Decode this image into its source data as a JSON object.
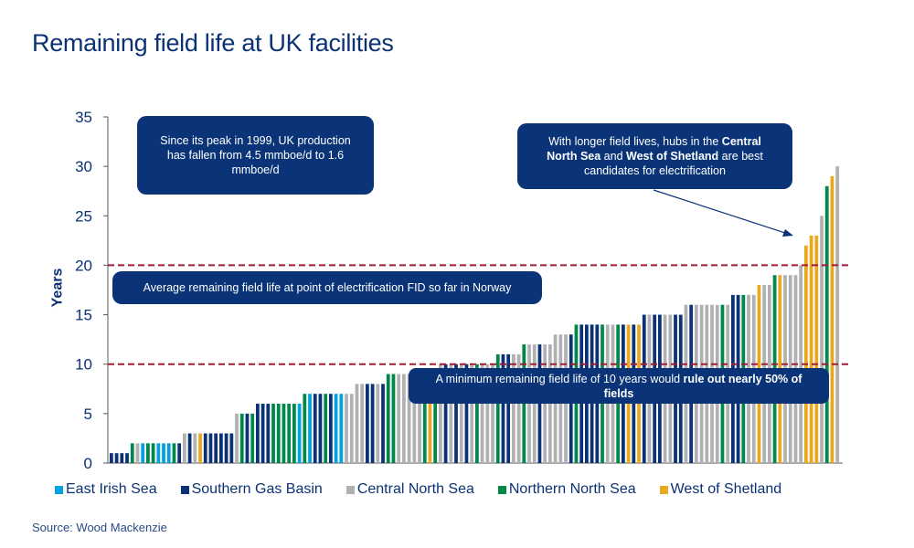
{
  "title": "Remaining field life at UK facilities",
  "source": "Source: Wood Mackenzie",
  "annotations": {
    "production": "Since its peak in 1999, UK production has fallen from 4.5 mmboe/d  to 1.6 mmboe/d",
    "norway_avg": "Average remaining field life at point of electrification FID so far in Norway",
    "minimum_pre": "A minimum  remaining field life of 10 years would ",
    "minimum_bold": "rule out nearly 50% of fields",
    "hubs_1": "With longer field lives, hubs in the ",
    "hubs_b1": "Central North Sea",
    "hubs_2": " and ",
    "hubs_b2": "West of Shetland",
    "hubs_3": " are best candidates  for electrification"
  },
  "colors": {
    "East Irish Sea": "#00a3e0",
    "Southern Gas Basin": "#0b3275",
    "Central North Sea": "#b1b1b4",
    "Northern North Sea": "#00884a",
    "West of Shetland": "#eaa81c",
    "reference_line": "#a01c36"
  },
  "chart_data": {
    "type": "bar",
    "xlabel": "",
    "ylabel": "Years",
    "ylim": [
      0,
      35
    ],
    "yticks": [
      0,
      5,
      10,
      15,
      20,
      25,
      30,
      35
    ],
    "grid": false,
    "legend_position": "bottom",
    "legend": [
      "East Irish Sea",
      "Southern Gas Basin",
      "Central North Sea",
      "Northern North Sea",
      "West of Shetland"
    ],
    "reference_lines": [
      20,
      10
    ],
    "codes": {
      "E": "East Irish Sea",
      "S": "Southern Gas Basin",
      "C": "Central North Sea",
      "N": "Northern North Sea",
      "W": "West of Shetland"
    },
    "bars": [
      [
        "S",
        1
      ],
      [
        "S",
        1
      ],
      [
        "S",
        1
      ],
      [
        "S",
        1
      ],
      [
        "N",
        2
      ],
      [
        "C",
        2
      ],
      [
        "E",
        2
      ],
      [
        "N",
        2
      ],
      [
        "N",
        2
      ],
      [
        "E",
        2
      ],
      [
        "E",
        2
      ],
      [
        "E",
        2
      ],
      [
        "N",
        2
      ],
      [
        "S",
        2
      ],
      [
        "C",
        3
      ],
      [
        "S",
        3
      ],
      [
        "C",
        3
      ],
      [
        "W",
        3
      ],
      [
        "S",
        3
      ],
      [
        "S",
        3
      ],
      [
        "S",
        3
      ],
      [
        "S",
        3
      ],
      [
        "S",
        3
      ],
      [
        "S",
        3
      ],
      [
        "C",
        5
      ],
      [
        "N",
        5
      ],
      [
        "S",
        5
      ],
      [
        "N",
        5
      ],
      [
        "S",
        6
      ],
      [
        "S",
        6
      ],
      [
        "S",
        6
      ],
      [
        "N",
        6
      ],
      [
        "N",
        6
      ],
      [
        "N",
        6
      ],
      [
        "N",
        6
      ],
      [
        "N",
        6
      ],
      [
        "E",
        6
      ],
      [
        "N",
        7
      ],
      [
        "E",
        7
      ],
      [
        "S",
        7
      ],
      [
        "S",
        7
      ],
      [
        "N",
        7
      ],
      [
        "S",
        7
      ],
      [
        "E",
        7
      ],
      [
        "E",
        7
      ],
      [
        "C",
        7
      ],
      [
        "C",
        7
      ],
      [
        "C",
        8
      ],
      [
        "C",
        8
      ],
      [
        "S",
        8
      ],
      [
        "S",
        8
      ],
      [
        "C",
        8
      ],
      [
        "S",
        8
      ],
      [
        "N",
        9
      ],
      [
        "N",
        9
      ],
      [
        "C",
        9
      ],
      [
        "C",
        9
      ],
      [
        "C",
        9
      ],
      [
        "C",
        9
      ],
      [
        "C",
        9
      ],
      [
        "N",
        9
      ],
      [
        "W",
        9
      ],
      [
        "N",
        9
      ],
      [
        "C",
        10
      ],
      [
        "S",
        10
      ],
      [
        "C",
        10
      ],
      [
        "S",
        10
      ],
      [
        "C",
        10
      ],
      [
        "S",
        10
      ],
      [
        "C",
        10
      ],
      [
        "N",
        10
      ],
      [
        "C",
        10
      ],
      [
        "C",
        10
      ],
      [
        "C",
        10
      ],
      [
        "N",
        11
      ],
      [
        "S",
        11
      ],
      [
        "S",
        11
      ],
      [
        "C",
        11
      ],
      [
        "C",
        11
      ],
      [
        "N",
        12
      ],
      [
        "C",
        12
      ],
      [
        "C",
        12
      ],
      [
        "S",
        12
      ],
      [
        "C",
        12
      ],
      [
        "C",
        12
      ],
      [
        "C",
        13
      ],
      [
        "C",
        13
      ],
      [
        "C",
        13
      ],
      [
        "S",
        13
      ],
      [
        "N",
        14
      ],
      [
        "S",
        14
      ],
      [
        "S",
        14
      ],
      [
        "S",
        14
      ],
      [
        "S",
        14
      ],
      [
        "N",
        14
      ],
      [
        "C",
        14
      ],
      [
        "C",
        14
      ],
      [
        "N",
        14
      ],
      [
        "S",
        14
      ],
      [
        "W",
        14
      ],
      [
        "S",
        14
      ],
      [
        "W",
        14
      ],
      [
        "S",
        15
      ],
      [
        "C",
        15
      ],
      [
        "S",
        15
      ],
      [
        "S",
        15
      ],
      [
        "C",
        15
      ],
      [
        "C",
        15
      ],
      [
        "S",
        15
      ],
      [
        "S",
        15
      ],
      [
        "C",
        16
      ],
      [
        "S",
        16
      ],
      [
        "C",
        16
      ],
      [
        "C",
        16
      ],
      [
        "C",
        16
      ],
      [
        "C",
        16
      ],
      [
        "C",
        16
      ],
      [
        "N",
        16
      ],
      [
        "C",
        16
      ],
      [
        "S",
        17
      ],
      [
        "S",
        17
      ],
      [
        "N",
        17
      ],
      [
        "C",
        17
      ],
      [
        "C",
        17
      ],
      [
        "W",
        18
      ],
      [
        "C",
        18
      ],
      [
        "C",
        18
      ],
      [
        "N",
        19
      ],
      [
        "W",
        19
      ],
      [
        "C",
        19
      ],
      [
        "C",
        19
      ],
      [
        "C",
        19
      ],
      [
        "C",
        20
      ],
      [
        "W",
        22
      ],
      [
        "W",
        23
      ],
      [
        "W",
        23
      ],
      [
        "C",
        25
      ],
      [
        "N",
        28
      ],
      [
        "W",
        29
      ],
      [
        "C",
        30
      ]
    ]
  }
}
